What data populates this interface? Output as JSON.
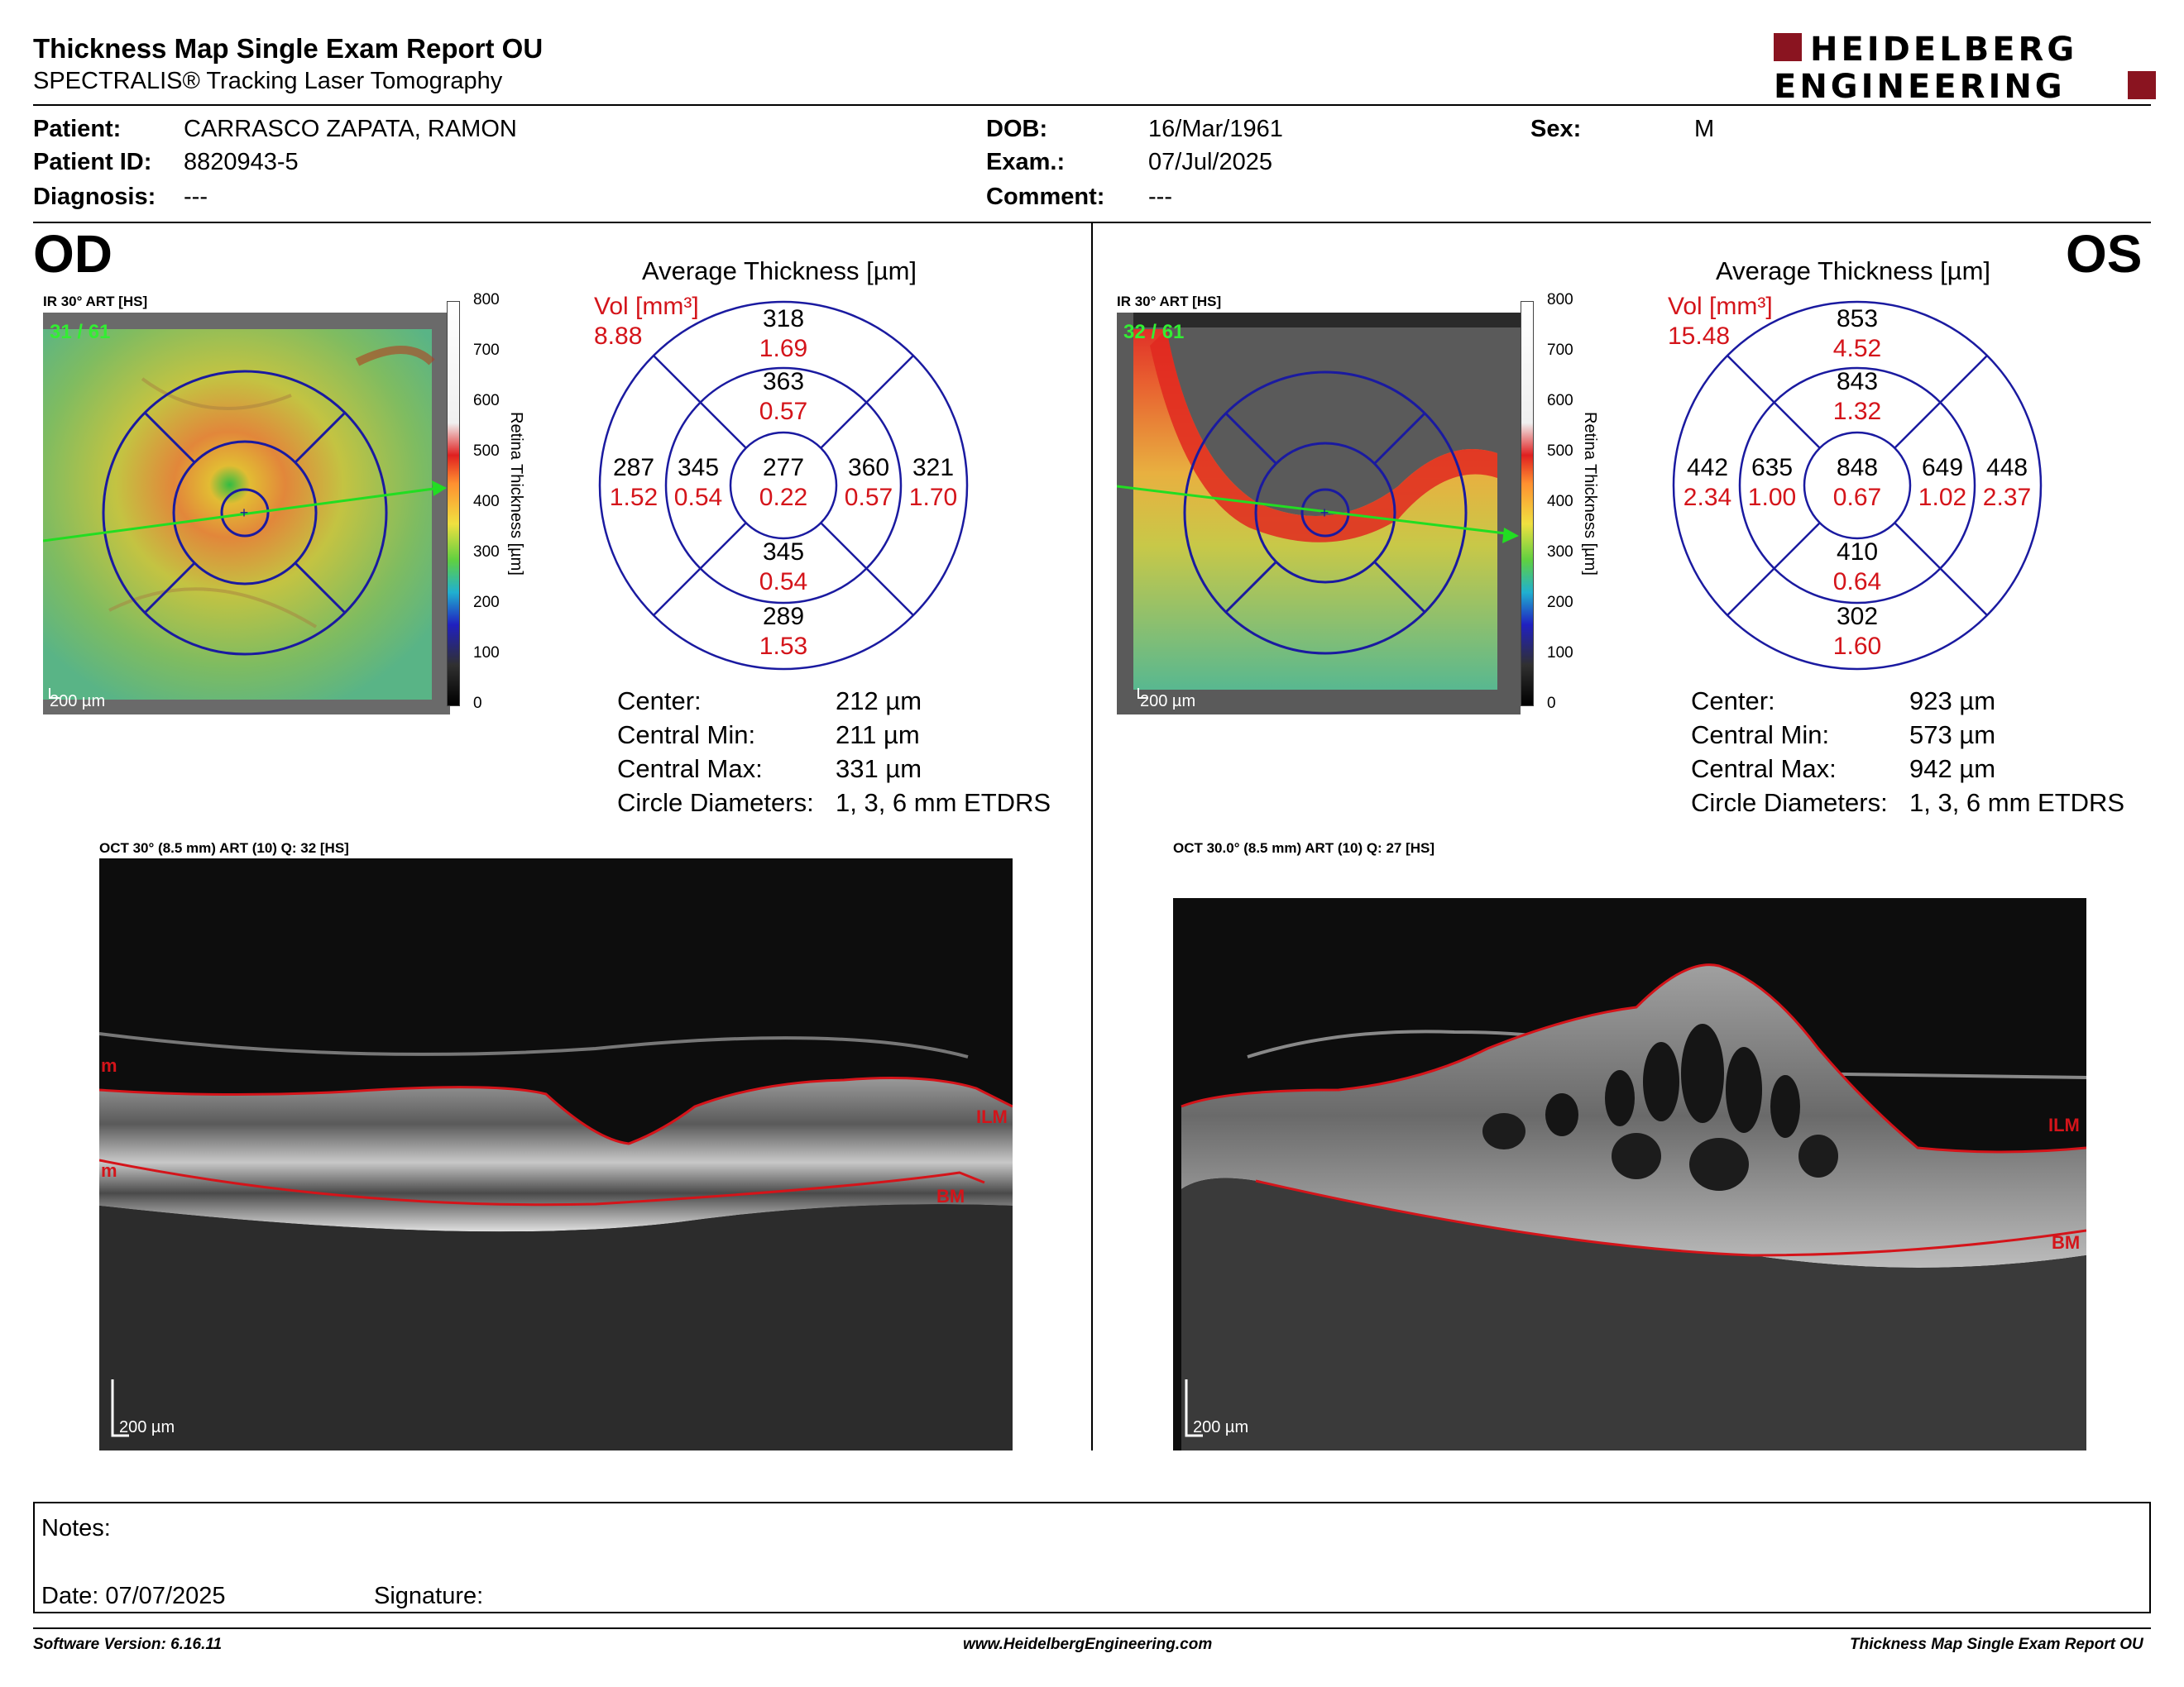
{
  "header": {
    "title": "Thickness Map Single Exam Report OU",
    "subtitle": "SPECTRALIS® Tracking Laser Tomography",
    "logo_line1": "HEIDELBERG",
    "logo_line2": "ENGINEERING"
  },
  "patient": {
    "patient_label": "Patient:",
    "patient_value": "CARRASCO ZAPATA, RAMON",
    "id_label": "Patient ID:",
    "id_value": "8820943-5",
    "diagnosis_label": "Diagnosis:",
    "diagnosis_value": "---",
    "dob_label": "DOB:",
    "dob_value": "16/Mar/1961",
    "exam_label": "Exam.:",
    "exam_value": "07/Jul/2025",
    "comment_label": "Comment:",
    "comment_value": "---",
    "sex_label": "Sex:",
    "sex_value": "M"
  },
  "od": {
    "eye": "OD",
    "fundus_label": "IR 30° ART [HS]",
    "fundus_count": "31 / 61",
    "fundus_scale": "200 µm",
    "colorbar_ticks": [
      "800",
      "700",
      "600",
      "500",
      "400",
      "300",
      "200",
      "100",
      "0"
    ],
    "colorbar_title": "Retina  Thickness [µm]",
    "avg_title": "Average Thickness [µm]",
    "vol_label": "Vol [mm³]",
    "vol_value": "8.88",
    "sectors": {
      "center": {
        "t": "277",
        "v": "0.22"
      },
      "inner_top": {
        "t": "363",
        "v": "0.57"
      },
      "inner_bottom": {
        "t": "345",
        "v": "0.54"
      },
      "inner_left": {
        "t": "345",
        "v": "0.54"
      },
      "inner_right": {
        "t": "360",
        "v": "0.57"
      },
      "outer_top": {
        "t": "318",
        "v": "1.69"
      },
      "outer_bottom": {
        "t": "289",
        "v": "1.53"
      },
      "outer_left": {
        "t": "287",
        "v": "1.52"
      },
      "outer_right": {
        "t": "321",
        "v": "1.70"
      }
    },
    "stats": [
      {
        "label": "Center:",
        "value": "212 µm"
      },
      {
        "label": "Central Min:",
        "value": "211 µm"
      },
      {
        "label": "Central Max:",
        "value": "331 µm"
      },
      {
        "label": "Circle Diameters:",
        "value": "1, 3, 6 mm ETDRS"
      }
    ],
    "oct_label": "OCT 30° (8.5 mm) ART (10) Q: 32 [HS]",
    "oct_scale": "200 µm",
    "ilm_label": "ILM",
    "bm_label": "BM",
    "edge_label_top": "m",
    "edge_label_bottom": "m"
  },
  "os": {
    "eye": "OS",
    "fundus_label": "IR 30° ART [HS]",
    "fundus_count": "32 / 61",
    "fundus_scale": "200 µm",
    "colorbar_ticks": [
      "800",
      "700",
      "600",
      "500",
      "400",
      "300",
      "200",
      "100",
      "0"
    ],
    "colorbar_title": "Retina  Thickness [µm]",
    "avg_title": "Average Thickness [µm]",
    "vol_label": "Vol [mm³]",
    "vol_value": "15.48",
    "sectors": {
      "center": {
        "t": "848",
        "v": "0.67"
      },
      "inner_top": {
        "t": "843",
        "v": "1.32"
      },
      "inner_bottom": {
        "t": "410",
        "v": "0.64"
      },
      "inner_left": {
        "t": "635",
        "v": "1.00"
      },
      "inner_right": {
        "t": "649",
        "v": "1.02"
      },
      "outer_top": {
        "t": "853",
        "v": "4.52"
      },
      "outer_bottom": {
        "t": "302",
        "v": "1.60"
      },
      "outer_left": {
        "t": "442",
        "v": "2.34"
      },
      "outer_right": {
        "t": "448",
        "v": "2.37"
      }
    },
    "stats": [
      {
        "label": "Center:",
        "value": "923 µm"
      },
      {
        "label": "Central Min:",
        "value": "573 µm"
      },
      {
        "label": "Central Max:",
        "value": "942 µm"
      },
      {
        "label": "Circle Diameters:",
        "value": "1, 3, 6 mm ETDRS"
      }
    ],
    "oct_label": "OCT 30.0° (8.5 mm) ART (10) Q: 27 [HS]",
    "oct_scale": "200 µm",
    "ilm_label": "ILM",
    "bm_label": "BM"
  },
  "notes": {
    "notes_label": "Notes:",
    "date_label": "Date: 07/07/2025",
    "signature_label": "Signature:"
  },
  "footer": {
    "software": "Software Version: 6.16.11",
    "website": "www.HeidelbergEngineering.com",
    "report": "Thickness Map Single Exam Report OU"
  },
  "colors": {
    "red": "#d4141a",
    "blue_grid": "#1a1aa0",
    "green_line": "#22dd22"
  }
}
